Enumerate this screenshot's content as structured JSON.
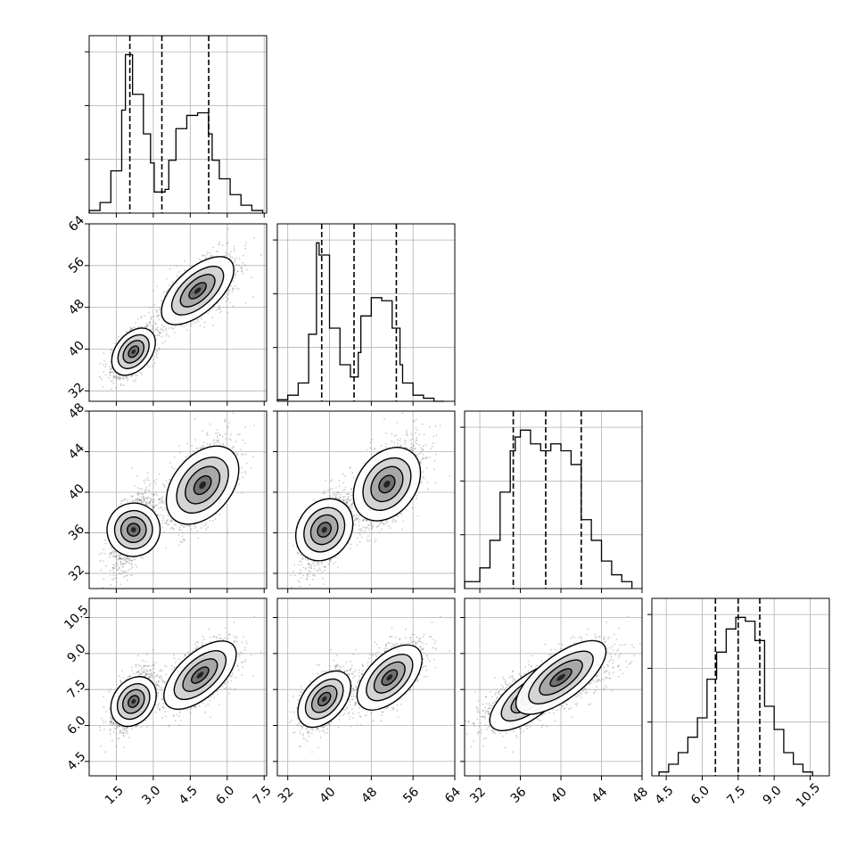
{
  "chart_data": {
    "type": "corner",
    "grid": true,
    "params": [
      {
        "range": [
          0.4,
          7.6
        ],
        "ticks": [
          1.5,
          3.0,
          4.5,
          6.0,
          7.5
        ],
        "tick_labels": [
          "1.5",
          "3.0",
          "4.5",
          "6.0",
          "7.5"
        ]
      },
      {
        "range": [
          30,
          64
        ],
        "ticks": [
          32,
          40,
          48,
          56,
          64
        ],
        "tick_labels": [
          "32",
          "40",
          "48",
          "56",
          "64"
        ]
      },
      {
        "range": [
          30.5,
          48
        ],
        "ticks": [
          32,
          36,
          40,
          44,
          48
        ],
        "tick_labels": [
          "32",
          "36",
          "40",
          "44",
          "48"
        ]
      },
      {
        "range": [
          3.9,
          11.3
        ],
        "ticks": [
          4.5,
          6.0,
          7.5,
          9.0,
          10.5
        ],
        "tick_labels": [
          "4.5",
          "6.0",
          "7.5",
          "9.0",
          "10.5"
        ]
      }
    ],
    "quantiles": [
      [
        2.05,
        3.35,
        5.25
      ],
      [
        38.5,
        44.7,
        52.8
      ],
      [
        35.3,
        38.5,
        42.0
      ],
      [
        6.55,
        7.5,
        8.4
      ]
    ],
    "histograms": [
      {
        "edges": [
          0.4,
          0.84,
          1.28,
          1.72,
          1.87,
          2.16,
          2.6,
          2.89,
          3.04,
          3.48,
          3.63,
          3.92,
          4.36,
          4.8,
          5.24,
          5.39,
          5.68,
          6.12,
          6.56,
          7.0,
          7.44
        ],
        "counts": [
          1,
          4,
          16,
          39,
          60,
          45,
          30,
          19,
          8,
          9,
          20,
          32,
          37,
          38,
          30,
          20,
          13,
          7,
          3,
          1
        ]
      },
      {
        "edges": [
          30,
          32,
          34,
          36,
          37.5,
          38,
          40,
          42,
          44,
          45.5,
          46,
          48,
          50,
          52,
          53.5,
          54,
          56,
          58,
          60,
          62
        ],
        "counts": [
          0.5,
          2,
          6,
          22,
          52,
          48,
          24,
          12,
          8,
          16,
          28,
          34,
          33,
          24,
          12,
          6,
          2,
          1,
          0
        ]
      },
      {
        "edges": [
          30.5,
          32,
          33,
          34,
          35,
          35.5,
          36,
          37,
          38,
          39,
          40,
          41,
          42,
          43,
          44,
          45,
          46,
          47
        ],
        "counts": [
          1,
          3,
          7,
          14,
          20,
          22,
          23,
          21,
          20,
          21,
          20,
          18,
          10,
          7,
          4,
          2,
          1
        ]
      },
      {
        "edges": [
          4.2,
          4.6,
          5.0,
          5.4,
          5.8,
          6.2,
          6.6,
          7.0,
          7.4,
          7.8,
          8.2,
          8.6,
          9.0,
          9.4,
          9.8,
          10.2,
          10.6
        ],
        "counts": [
          1,
          3,
          6,
          10,
          15,
          25,
          32,
          38,
          41,
          40,
          35,
          18,
          12,
          6,
          3,
          1
        ]
      }
    ],
    "components": [
      {
        "weight": 0.5,
        "means": [
          2.2,
          39.5,
          36.3,
          7.1
        ],
        "sds": [
          0.45,
          2.6,
          2.0,
          0.65
        ]
      },
      {
        "weight": 0.5,
        "means": [
          4.9,
          51.5,
          40.8,
          8.1
        ],
        "sds": [
          0.75,
          3.2,
          2.2,
          0.7
        ]
      }
    ],
    "density_peaks": [
      {
        "pair": [
          0,
          1
        ],
        "points": [
          [
            2.2,
            39.5
          ],
          [
            4.8,
            51.2
          ]
        ]
      },
      {
        "pair": [
          0,
          2
        ],
        "points": [
          [
            2.2,
            36.3
          ],
          [
            5.0,
            40.7
          ]
        ]
      },
      {
        "pair": [
          1,
          2
        ],
        "points": [
          [
            39.0,
            36.3
          ],
          [
            51.0,
            40.8
          ]
        ]
      },
      {
        "pair": [
          0,
          3
        ],
        "points": [
          [
            2.2,
            7.0
          ],
          [
            4.9,
            8.1
          ]
        ]
      },
      {
        "pair": [
          1,
          3
        ],
        "points": [
          [
            39.0,
            7.1
          ],
          [
            51.5,
            8.0
          ]
        ]
      },
      {
        "pair": [
          2,
          3
        ],
        "points": [
          [
            37.0,
            7.2
          ],
          [
            40.0,
            8.0
          ]
        ]
      }
    ]
  }
}
